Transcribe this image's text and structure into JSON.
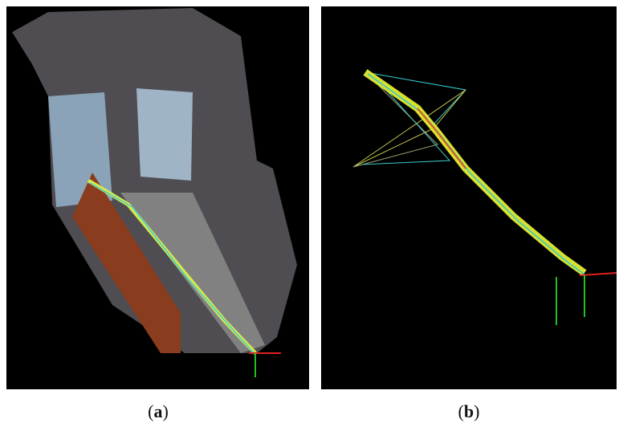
{
  "figure": {
    "panels": [
      {
        "caption": [
          "(",
          "a",
          ")"
        ]
      },
      {
        "caption": [
          "(",
          "b",
          ")"
        ]
      }
    ]
  }
}
